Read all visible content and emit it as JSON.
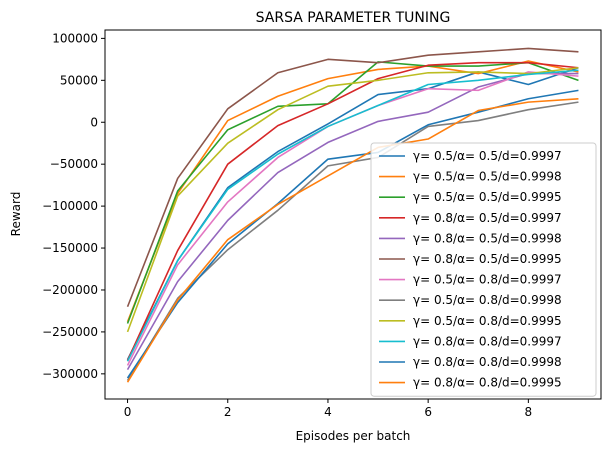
{
  "chart_data": {
    "type": "line",
    "title": "SARSA PARAMETER TUNING",
    "xlabel": "Episodes per batch",
    "ylabel": "Reward",
    "xlim": [
      -0.45,
      9.45
    ],
    "ylim": [
      -330000,
      110000
    ],
    "x": [
      0,
      1,
      2,
      3,
      4,
      5,
      6,
      7,
      8,
      9
    ],
    "xticks": [
      0,
      2,
      4,
      6,
      8
    ],
    "xtick_labels": [
      "0",
      "2",
      "4",
      "6",
      "8"
    ],
    "yticks": [
      100000,
      50000,
      0,
      -50000,
      -100000,
      -150000,
      -200000,
      -250000,
      -300000
    ],
    "ytick_labels": [
      "100000",
      "50000",
      "0",
      "−50000",
      "−100000",
      "−150000",
      "−200000",
      "−250000",
      "−300000"
    ],
    "grid": false,
    "legend_position": "lower right",
    "series": [
      {
        "name": "γ= 0.5/α= 0.5/d=0.9997",
        "color": "#1f77b4",
        "values": [
          -283000,
          -165000,
          -78000,
          -35000,
          -2000,
          33000,
          40000,
          60000,
          45000,
          65000
        ]
      },
      {
        "name": "γ= 0.5/α= 0.5/d=0.9998",
        "color": "#ff7f0e",
        "values": [
          -238000,
          -85000,
          2000,
          31000,
          52000,
          63000,
          67000,
          58000,
          73000,
          60000
        ]
      },
      {
        "name": "γ= 0.5/α= 0.5/d=0.9995",
        "color": "#2ca02c",
        "values": [
          -240000,
          -82000,
          -9000,
          19000,
          22000,
          72000,
          67000,
          67000,
          71000,
          50000
        ]
      },
      {
        "name": "γ= 0.8/α= 0.5/d=0.9997",
        "color": "#d62728",
        "values": [
          -284000,
          -153000,
          -50000,
          -4000,
          22000,
          52000,
          68000,
          71000,
          71000,
          65000
        ]
      },
      {
        "name": "γ= 0.8/α= 0.5/d=0.9998",
        "color": "#9467bd",
        "values": [
          -295000,
          -190000,
          -117000,
          -60000,
          -24000,
          1000,
          12000,
          42000,
          58000,
          58000
        ]
      },
      {
        "name": "γ= 0.8/α= 0.5/d=0.9995",
        "color": "#8c564b",
        "values": [
          -220000,
          -67000,
          16000,
          59000,
          75000,
          71000,
          80000,
          84000,
          88000,
          84000
        ]
      },
      {
        "name": "γ= 0.5/α= 0.8/d=0.9997",
        "color": "#e377c2",
        "values": [
          -290000,
          -170000,
          -95000,
          -42000,
          -5000,
          20000,
          40000,
          38000,
          60000,
          55000
        ]
      },
      {
        "name": "γ= 0.5/α= 0.8/d=0.9998",
        "color": "#7f7f7f",
        "values": [
          -308000,
          -210000,
          -152000,
          -105000,
          -52000,
          -42000,
          -5000,
          2000,
          15000,
          24000
        ]
      },
      {
        "name": "γ= 0.5/α= 0.8/d=0.9995",
        "color": "#bcbd22",
        "values": [
          -250000,
          -88000,
          -25000,
          15000,
          43000,
          50000,
          59000,
          60000,
          58000,
          65000
        ]
      },
      {
        "name": "γ= 0.8/α= 0.8/d=0.9997",
        "color": "#17becf",
        "values": [
          -285000,
          -165000,
          -80000,
          -38000,
          -5000,
          20000,
          45000,
          50000,
          57000,
          62000
        ]
      },
      {
        "name": "γ= 0.8/α= 0.8/d=0.9998",
        "color": "#1f77b4",
        "values": [
          -305000,
          -215000,
          -145000,
          -97000,
          -44000,
          -36000,
          -3000,
          12000,
          28000,
          38000
        ]
      },
      {
        "name": "γ= 0.8/α= 0.8/d=0.9995",
        "color": "#ff7f0e",
        "values": [
          -310000,
          -212000,
          -140000,
          -98000,
          -64000,
          -30000,
          -20000,
          14000,
          24000,
          28000
        ]
      }
    ]
  }
}
